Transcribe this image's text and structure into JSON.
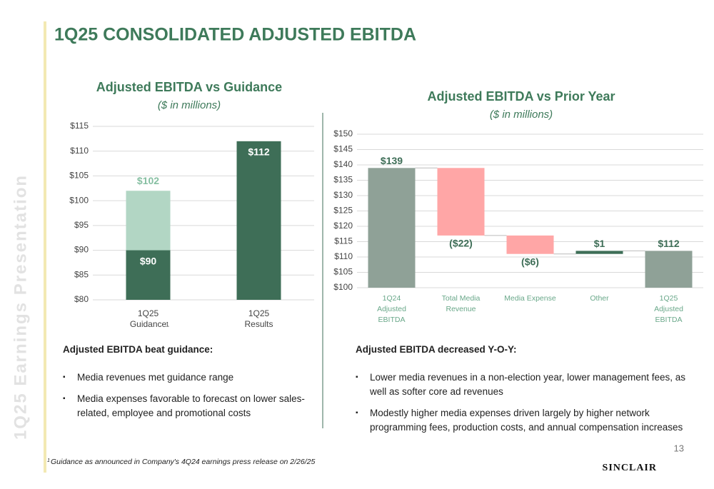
{
  "title": "1Q25 CONSOLIDATED ADJUSTED EBITDA",
  "sidebar": "1Q25 Earnings Presentation",
  "chart_data": [
    {
      "type": "bar",
      "title": "Adjusted EBITDA vs Guidance",
      "subtitle": "($ in millions)",
      "categories": [
        [
          "1Q25",
          "Guidance"
        ],
        [
          "1Q25",
          "Results"
        ]
      ],
      "series": [
        {
          "color": "#b2d6c4",
          "values": [
            102,
            null
          ],
          "value_labels": [
            "$102",
            null
          ]
        },
        {
          "color": "#3e6e57",
          "values": [
            90,
            112
          ],
          "value_labels": [
            "$90",
            "$112"
          ]
        }
      ],
      "ylim": [
        80,
        115
      ],
      "yticks": [
        {
          "value": 80,
          "label": "$80"
        },
        {
          "value": 85,
          "label": "$85"
        },
        {
          "value": 90,
          "label": "$90"
        },
        {
          "value": 95,
          "label": "$95"
        },
        {
          "value": 100,
          "label": "$100"
        },
        {
          "value": 105,
          "label": "$105"
        },
        {
          "value": 110,
          "label": "$110"
        },
        {
          "value": 115,
          "label": "$115"
        }
      ],
      "grid": true
    },
    {
      "type": "waterfall",
      "title": "Adjusted EBITDA vs Prior Year",
      "subtitle": "($ in millions)",
      "categories": [
        [
          "1Q24",
          "Adjusted",
          "EBITDA"
        ],
        [
          "Total Media",
          "Revenue"
        ],
        [
          "Media Expense"
        ],
        [
          "Other"
        ],
        [
          "1Q25",
          "Adjusted",
          "EBITDA"
        ]
      ],
      "values": [
        139,
        -22,
        -6,
        1,
        112
      ],
      "value_labels": [
        "$139",
        "($22)",
        "($6)",
        "$1",
        "$112"
      ],
      "measures": [
        "total",
        "relative",
        "relative",
        "relative",
        "total"
      ],
      "colors": {
        "total": "#8fa197",
        "decrease": "#ffa6a6",
        "increase": "#3e6e57"
      },
      "ylim": [
        100,
        150
      ],
      "yticks": [
        {
          "value": 100,
          "label": "$100"
        },
        {
          "value": 105,
          "label": "$105"
        },
        {
          "value": 110,
          "label": "$110"
        },
        {
          "value": 115,
          "label": "$115"
        },
        {
          "value": 120,
          "label": "$120"
        },
        {
          "value": 125,
          "label": "$125"
        },
        {
          "value": 130,
          "label": "$130"
        },
        {
          "value": 135,
          "label": "$135"
        },
        {
          "value": 140,
          "label": "$140"
        },
        {
          "value": 145,
          "label": "$145"
        },
        {
          "value": 150,
          "label": "$150"
        }
      ],
      "grid": true
    }
  ],
  "left_text": {
    "heading": "Adjusted EBITDA beat guidance:",
    "bullets": [
      "Media revenues met guidance range",
      "Media expenses favorable to forecast on lower sales-related, employee and promotional costs"
    ]
  },
  "right_text": {
    "heading": "Adjusted EBITDA decreased Y-O-Y:",
    "bullets": [
      "Lower media revenues in a non-election year, lower management fees, as well as softer core ad revenues",
      "Modestly higher media expenses driven largely by higher network programming fees, production costs, and annual compensation increases"
    ]
  },
  "footnote": {
    "marker": "1",
    "text": "Guidance as announced in Company's 4Q24 earnings press release on 2/26/25"
  },
  "page_number": "13",
  "logo": "SINCLAIR"
}
